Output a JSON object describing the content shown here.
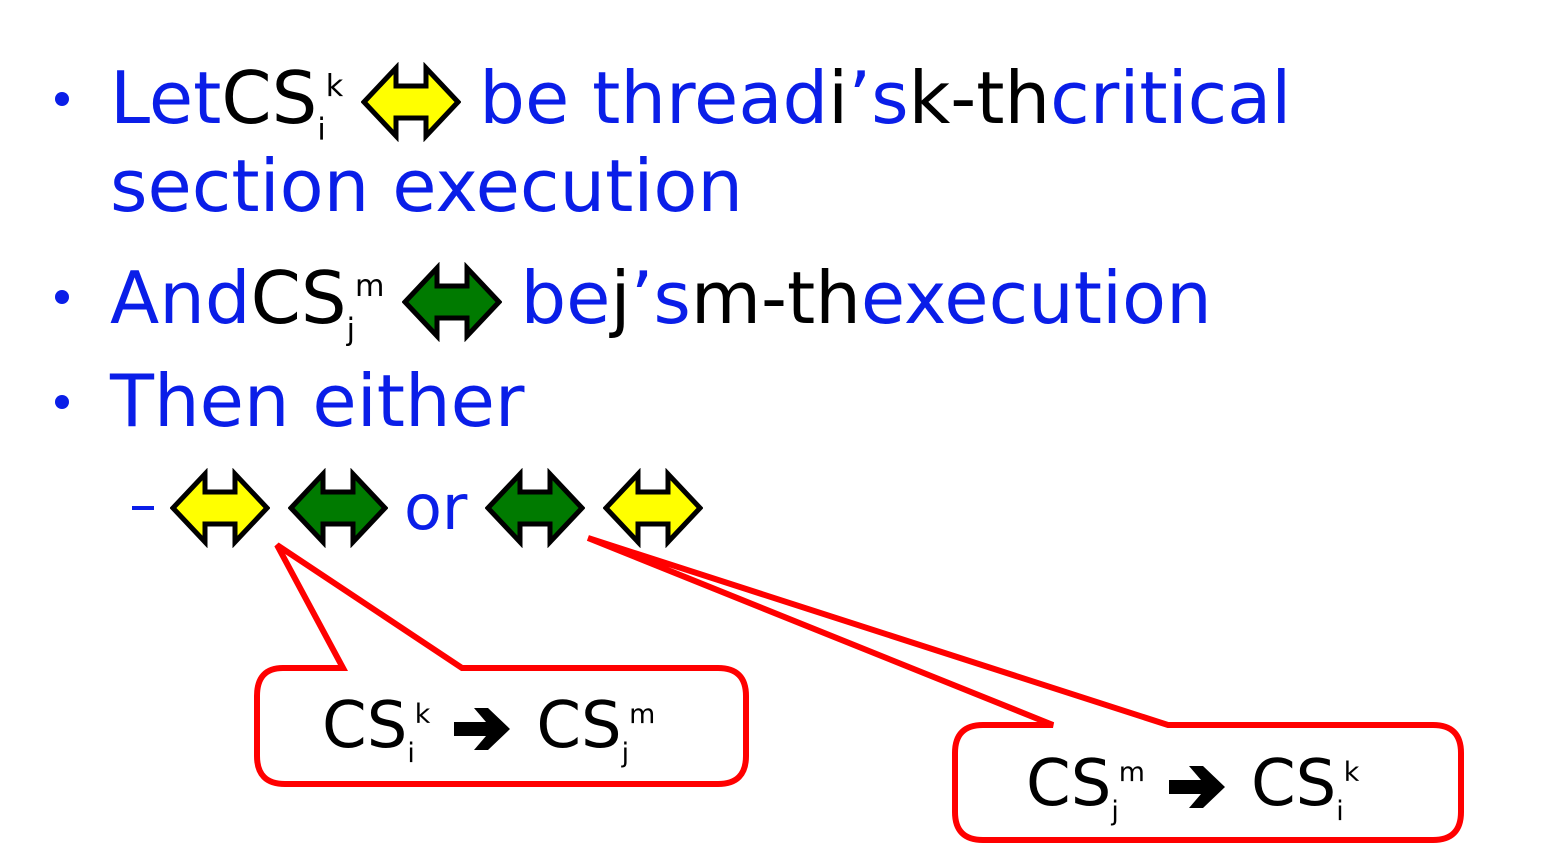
{
  "bullets": [
    {
      "pre": "Let ",
      "cs": "CS",
      "sub": "i",
      "sup": "k",
      "post_blue": "be thread ",
      "post_black1": "i",
      "post_blue2": "’s ",
      "post_black2": "k-th ",
      "post_blue3": "critical",
      "line2": "section execution",
      "arrow_color": "#ffff00"
    },
    {
      "pre": "And ",
      "cs": "CS",
      "sub": "j",
      "sup": "m",
      "post_blue": "be ",
      "post_black1": "j",
      "post_blue2": "’s ",
      "post_black2": "m-th ",
      "post_blue3": "execution",
      "arrow_color": "#007a00"
    },
    {
      "text": "Then either"
    }
  ],
  "sub_item": {
    "or_label": "or",
    "order_a": [
      "#ffff00",
      "#007a00"
    ],
    "order_b": [
      "#007a00",
      "#ffff00"
    ]
  },
  "callouts": [
    {
      "cs1": "CS",
      "sub1": "i",
      "sup1": "k",
      "cs2": "CS",
      "sub2": "j",
      "sup2": "m"
    },
    {
      "cs1": "CS",
      "sub1": "j",
      "sup1": "m",
      "cs2": "CS",
      "sub2": "i",
      "sup2": "k"
    }
  ],
  "colors": {
    "text_blue": "#0a1ee8",
    "yellow_arrow": "#ffff00",
    "green_arrow": "#007a00",
    "callout_red": "#ff0000"
  }
}
